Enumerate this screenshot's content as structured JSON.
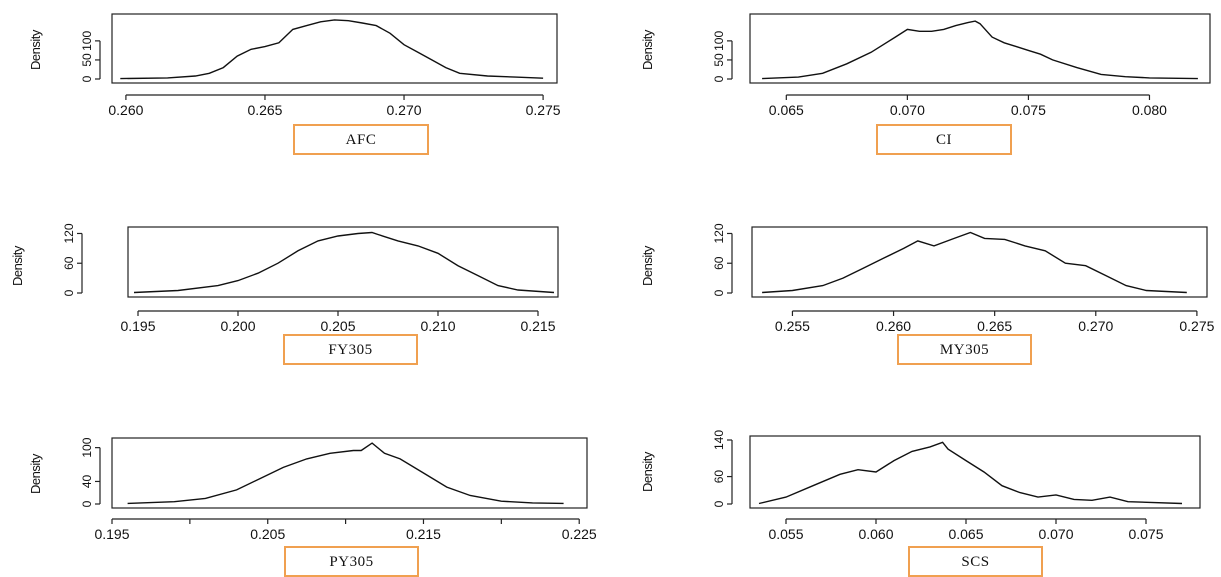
{
  "chart_data": [
    {
      "type": "line",
      "name_label": "AFC",
      "ylabel": "Density",
      "xlim": [
        0.2595,
        0.2755
      ],
      "ylim": [
        0,
        160
      ],
      "xticks": [
        "0.260",
        "0.265",
        "0.270",
        "0.275"
      ],
      "xtick_values": [
        0.26,
        0.265,
        0.27,
        0.275
      ],
      "yticks": [
        "0",
        "50",
        "100"
      ],
      "ytick_values": [
        0,
        50,
        100
      ],
      "x": [
        0.2598,
        0.2615,
        0.2625,
        0.263,
        0.2635,
        0.264,
        0.2645,
        0.265,
        0.2655,
        0.266,
        0.2665,
        0.267,
        0.2675,
        0.268,
        0.2685,
        0.269,
        0.2695,
        0.27,
        0.2705,
        0.271,
        0.2715,
        0.272,
        0.273,
        0.274,
        0.275
      ],
      "y": [
        1,
        3,
        8,
        15,
        30,
        60,
        78,
        85,
        95,
        130,
        140,
        150,
        155,
        153,
        147,
        140,
        120,
        90,
        70,
        50,
        30,
        15,
        8,
        5,
        2
      ]
    },
    {
      "type": "line",
      "name_label": "CI",
      "ylabel": "Density",
      "xlim": [
        0.0635,
        0.0825
      ],
      "ylim": [
        0,
        160
      ],
      "xticks": [
        "0.065",
        "0.070",
        "0.075",
        "0.080"
      ],
      "xtick_values": [
        0.065,
        0.07,
        0.075,
        0.08
      ],
      "yticks": [
        "0",
        "50",
        "100"
      ],
      "ytick_values": [
        0,
        50,
        100
      ],
      "x": [
        0.064,
        0.0655,
        0.0665,
        0.0675,
        0.0685,
        0.0695,
        0.07,
        0.0705,
        0.071,
        0.0715,
        0.072,
        0.0725,
        0.0728,
        0.073,
        0.0735,
        0.074,
        0.0745,
        0.075,
        0.0755,
        0.076,
        0.077,
        0.078,
        0.079,
        0.08,
        0.082
      ],
      "y": [
        1,
        5,
        15,
        40,
        70,
        110,
        130,
        125,
        125,
        130,
        140,
        148,
        152,
        145,
        110,
        95,
        85,
        75,
        65,
        50,
        30,
        12,
        6,
        3,
        1
      ]
    },
    {
      "type": "line",
      "name_label": "FY305",
      "ylabel": "Density",
      "xlim": [
        0.1945,
        0.216
      ],
      "ylim": [
        0,
        125
      ],
      "xticks": [
        "0.195",
        "0.200",
        "0.205",
        "0.210",
        "0.215"
      ],
      "xtick_values": [
        0.195,
        0.2,
        0.205,
        0.21,
        0.215
      ],
      "yticks": [
        "0",
        "60",
        "120"
      ],
      "ytick_values": [
        0,
        60,
        120
      ],
      "x": [
        0.1948,
        0.197,
        0.199,
        0.2,
        0.201,
        0.202,
        0.203,
        0.204,
        0.205,
        0.206,
        0.2067,
        0.207,
        0.208,
        0.209,
        0.21,
        0.211,
        0.212,
        0.213,
        0.214,
        0.2158
      ],
      "y": [
        1,
        5,
        15,
        25,
        40,
        60,
        85,
        105,
        115,
        120,
        122,
        118,
        105,
        95,
        80,
        55,
        35,
        15,
        6,
        1
      ]
    },
    {
      "type": "line",
      "name_label": "MY305",
      "ylabel": "Density",
      "xlim": [
        0.253,
        0.2755
      ],
      "ylim": [
        0,
        125
      ],
      "xticks": [
        "0.255",
        "0.260",
        "0.265",
        "0.270",
        "0.275"
      ],
      "xtick_values": [
        0.255,
        0.26,
        0.265,
        0.27,
        0.275
      ],
      "yticks": [
        "0",
        "60",
        "120"
      ],
      "ytick_values": [
        0,
        60,
        120
      ],
      "x": [
        0.2535,
        0.255,
        0.2565,
        0.2575,
        0.2585,
        0.2595,
        0.2605,
        0.2612,
        0.262,
        0.263,
        0.2638,
        0.2645,
        0.2655,
        0.2665,
        0.2675,
        0.2685,
        0.2695,
        0.2705,
        0.2715,
        0.2725,
        0.2745
      ],
      "y": [
        1,
        5,
        15,
        30,
        50,
        70,
        90,
        105,
        95,
        110,
        122,
        110,
        108,
        95,
        85,
        60,
        55,
        35,
        15,
        5,
        1
      ]
    },
    {
      "type": "line",
      "name_label": "PY305",
      "ylabel": "Density",
      "xlim": [
        0.195,
        0.2255
      ],
      "ylim": [
        0,
        110
      ],
      "xticks": [
        "0.195",
        "",
        "0.205",
        "",
        "0.215",
        "",
        "0.225"
      ],
      "xtick_values": [
        0.195,
        0.2,
        0.205,
        0.21,
        0.215,
        0.22,
        0.225
      ],
      "yticks": [
        "0",
        "40",
        "100"
      ],
      "ytick_values": [
        0,
        40,
        100
      ],
      "x": [
        0.196,
        0.199,
        0.201,
        0.203,
        0.2045,
        0.206,
        0.2075,
        0.209,
        0.2105,
        0.211,
        0.2117,
        0.2125,
        0.2135,
        0.215,
        0.2165,
        0.218,
        0.22,
        0.222,
        0.224
      ],
      "y": [
        1,
        4,
        10,
        25,
        45,
        65,
        80,
        90,
        95,
        95,
        108,
        90,
        80,
        55,
        30,
        15,
        5,
        2,
        1
      ]
    },
    {
      "type": "line",
      "name_label": "SCS",
      "ylabel": "Density",
      "xlim": [
        0.053,
        0.078
      ],
      "ylim": [
        0,
        140
      ],
      "xticks": [
        "0.055",
        "0.060",
        "0.065",
        "0.070",
        "0.075"
      ],
      "xtick_values": [
        0.055,
        0.06,
        0.065,
        0.07,
        0.075
      ],
      "yticks": [
        "0",
        "60",
        "140"
      ],
      "ytick_values": [
        0,
        60,
        140
      ],
      "x": [
        0.0535,
        0.055,
        0.0565,
        0.058,
        0.059,
        0.06,
        0.061,
        0.062,
        0.063,
        0.0637,
        0.064,
        0.065,
        0.066,
        0.067,
        0.068,
        0.069,
        0.07,
        0.071,
        0.072,
        0.073,
        0.074,
        0.077
      ],
      "y": [
        1,
        15,
        40,
        65,
        75,
        70,
        95,
        115,
        125,
        135,
        120,
        95,
        70,
        40,
        25,
        15,
        20,
        10,
        8,
        15,
        5,
        1
      ]
    }
  ]
}
